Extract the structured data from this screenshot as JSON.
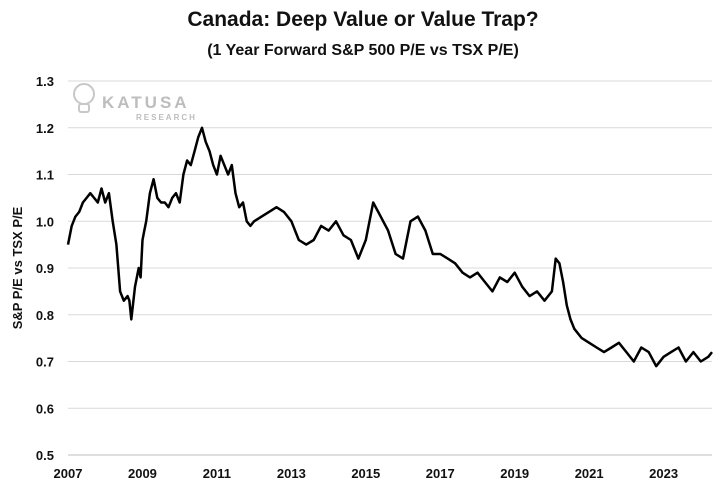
{
  "chart_data": {
    "type": "line",
    "title": "Canada: Deep Value or Value Trap?",
    "subtitle": "(1 Year Forward S&P 500 P/E vs TSX P/E)",
    "xlabel": "",
    "ylabel": "S&P P/E vs TSX P/E",
    "xlim": [
      2007,
      2024.3
    ],
    "ylim": [
      0.5,
      1.3
    ],
    "x_ticks": [
      "2007",
      "2009",
      "2011",
      "2013",
      "2015",
      "2017",
      "2019",
      "2021",
      "2023"
    ],
    "y_ticks": [
      "0.5",
      "0.6",
      "0.7",
      "0.8",
      "0.9",
      "1.0",
      "1.1",
      "1.2",
      "1.3"
    ],
    "grid": "horizontal",
    "legend": "none",
    "line_color": "#000000",
    "series": [
      {
        "x": [
          2007.0,
          2007.1,
          2007.2,
          2007.3,
          2007.4,
          2007.5,
          2007.6,
          2007.7,
          2007.8,
          2007.9,
          2008.0,
          2008.1,
          2008.2,
          2008.3,
          2008.4,
          2008.5,
          2008.6,
          2008.65,
          2008.7,
          2008.8,
          2008.9,
          2008.95,
          2009.0,
          2009.05,
          2009.1,
          2009.2,
          2009.3,
          2009.4,
          2009.5,
          2009.6,
          2009.7,
          2009.8,
          2009.9,
          2010.0,
          2010.1,
          2010.2,
          2010.3,
          2010.4,
          2010.5,
          2010.6,
          2010.7,
          2010.8,
          2010.9,
          2011.0,
          2011.1,
          2011.2,
          2011.3,
          2011.4,
          2011.5,
          2011.6,
          2011.7,
          2011.8,
          2011.9,
          2012.0,
          2012.2,
          2012.4,
          2012.6,
          2012.8,
          2013.0,
          2013.2,
          2013.4,
          2013.6,
          2013.8,
          2014.0,
          2014.2,
          2014.4,
          2014.6,
          2014.8,
          2015.0,
          2015.1,
          2015.2,
          2015.4,
          2015.6,
          2015.8,
          2016.0,
          2016.2,
          2016.4,
          2016.6,
          2016.8,
          2017.0,
          2017.2,
          2017.4,
          2017.6,
          2017.8,
          2018.0,
          2018.2,
          2018.4,
          2018.6,
          2018.8,
          2019.0,
          2019.2,
          2019.4,
          2019.6,
          2019.8,
          2020.0,
          2020.1,
          2020.2,
          2020.3,
          2020.4,
          2020.5,
          2020.6,
          2020.8,
          2021.0,
          2021.2,
          2021.4,
          2021.6,
          2021.8,
          2022.0,
          2022.2,
          2022.4,
          2022.6,
          2022.8,
          2023.0,
          2023.2,
          2023.4,
          2023.6,
          2023.8,
          2024.0,
          2024.2,
          2024.3
        ],
        "y": [
          0.95,
          0.99,
          1.01,
          1.02,
          1.04,
          1.05,
          1.06,
          1.05,
          1.04,
          1.07,
          1.04,
          1.06,
          1.0,
          0.95,
          0.85,
          0.83,
          0.84,
          0.83,
          0.79,
          0.86,
          0.9,
          0.88,
          0.96,
          0.98,
          1.0,
          1.06,
          1.09,
          1.05,
          1.04,
          1.04,
          1.03,
          1.05,
          1.06,
          1.04,
          1.1,
          1.13,
          1.12,
          1.15,
          1.18,
          1.2,
          1.17,
          1.15,
          1.12,
          1.1,
          1.14,
          1.12,
          1.1,
          1.12,
          1.06,
          1.03,
          1.04,
          1.0,
          0.99,
          1.0,
          1.01,
          1.02,
          1.03,
          1.02,
          1.0,
          0.96,
          0.95,
          0.96,
          0.99,
          0.98,
          1.0,
          0.97,
          0.96,
          0.92,
          0.96,
          1.0,
          1.04,
          1.01,
          0.98,
          0.93,
          0.92,
          1.0,
          1.01,
          0.98,
          0.93,
          0.93,
          0.92,
          0.91,
          0.89,
          0.88,
          0.89,
          0.87,
          0.85,
          0.88,
          0.87,
          0.89,
          0.86,
          0.84,
          0.85,
          0.83,
          0.85,
          0.92,
          0.91,
          0.87,
          0.82,
          0.79,
          0.77,
          0.75,
          0.74,
          0.73,
          0.72,
          0.73,
          0.74,
          0.72,
          0.7,
          0.73,
          0.72,
          0.69,
          0.71,
          0.72,
          0.73,
          0.7,
          0.72,
          0.7,
          0.71,
          0.72
        ]
      }
    ]
  }
}
